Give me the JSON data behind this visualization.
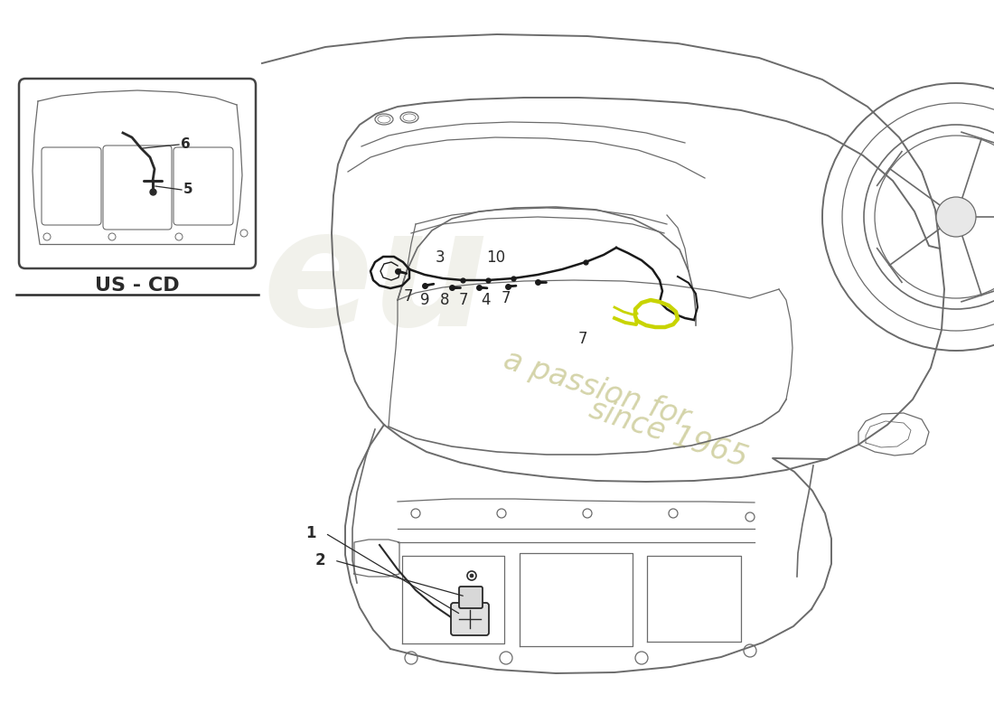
{
  "background_color": "#ffffff",
  "car_line_color": "#6b6b6b",
  "dark_line_color": "#2a2a2a",
  "part_line_color": "#1a1a1a",
  "highlight_color": "#c8d400",
  "watermark_text_color": "#d0cfa0",
  "watermark_logo_color": "#d8d8c8",
  "inset_label": "US - CD",
  "figsize": [
    11.0,
    8.0
  ],
  "dpi": 100,
  "xlim": [
    0,
    1100
  ],
  "ylim": [
    0,
    800
  ]
}
